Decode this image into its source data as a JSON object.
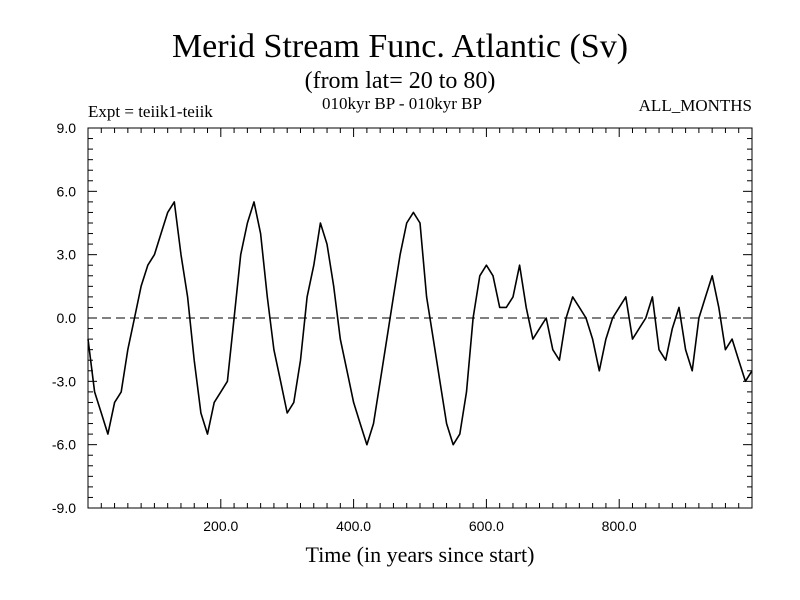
{
  "chart_data": {
    "type": "line",
    "title": "Merid Stream Func. Atlantic (Sv)",
    "subtitle": "(from lat= 20 to 80)",
    "annotations": {
      "left": "Expt = teiik1-teiik",
      "center": "010kyr BP - 010kyr BP",
      "right": "ALL_MONTHS"
    },
    "xlabel": "Time (in years since start)",
    "ylabel": "",
    "xlim": [
      0,
      1000
    ],
    "ylim": [
      -9.0,
      9.0
    ],
    "x_ticks": [
      200.0,
      400.0,
      600.0,
      800.0
    ],
    "x_tick_labels": [
      "200.0",
      "400.0",
      "600.0",
      "800.0"
    ],
    "y_ticks": [
      9.0,
      6.0,
      3.0,
      0.0,
      -3.0,
      -6.0,
      -9.0
    ],
    "y_tick_labels": [
      "9.0",
      "6.0",
      "3.0",
      "0.0",
      "-3.0",
      "-6.0",
      "-9.0"
    ],
    "reference_line": {
      "y": 0.0,
      "style": "dashed"
    },
    "grid": false,
    "legend": "none",
    "colors": {
      "line": "#000000",
      "axis": "#000000",
      "background": "#ffffff"
    },
    "series": [
      {
        "x": [
          0,
          10,
          20,
          30,
          40,
          50,
          60,
          70,
          80,
          90,
          100,
          110,
          120,
          130,
          140,
          150,
          160,
          170,
          180,
          190,
          200,
          210,
          220,
          230,
          240,
          250,
          260,
          270,
          280,
          290,
          300,
          310,
          320,
          330,
          340,
          350,
          360,
          370,
          380,
          390,
          400,
          410,
          420,
          430,
          440,
          450,
          460,
          470,
          480,
          490,
          500,
          510,
          520,
          530,
          540,
          550,
          560,
          570,
          580,
          590,
          600,
          610,
          620,
          630,
          640,
          650,
          660,
          670,
          680,
          690,
          700,
          710,
          720,
          730,
          740,
          750,
          760,
          770,
          780,
          790,
          800,
          810,
          820,
          830,
          840,
          850,
          860,
          870,
          880,
          890,
          900,
          910,
          920,
          930,
          940,
          950,
          960,
          970,
          980,
          990,
          1000
        ],
        "values": [
          -1.0,
          -3.5,
          -4.5,
          -5.5,
          -4.0,
          -3.5,
          -1.5,
          0.0,
          1.5,
          2.5,
          3.0,
          4.0,
          5.0,
          5.5,
          3.0,
          1.0,
          -2.0,
          -4.5,
          -5.5,
          -4.0,
          -3.5,
          -3.0,
          0.0,
          3.0,
          4.5,
          5.5,
          4.0,
          1.0,
          -1.5,
          -3.0,
          -4.5,
          -4.0,
          -2.0,
          1.0,
          2.5,
          4.5,
          3.5,
          1.5,
          -1.0,
          -2.5,
          -4.0,
          -5.0,
          -6.0,
          -5.0,
          -3.0,
          -1.0,
          1.0,
          3.0,
          4.5,
          5.0,
          4.5,
          1.0,
          -1.0,
          -3.0,
          -5.0,
          -6.0,
          -5.5,
          -3.5,
          0.0,
          2.0,
          2.5,
          2.0,
          0.5,
          0.5,
          1.0,
          2.5,
          0.5,
          -1.0,
          -0.5,
          0.0,
          -1.5,
          -2.0,
          0.0,
          1.0,
          0.5,
          0.0,
          -1.0,
          -2.5,
          -1.0,
          0.0,
          0.5,
          1.0,
          -1.0,
          -0.5,
          0.0,
          1.0,
          -1.5,
          -2.0,
          -0.5,
          0.5,
          -1.5,
          -2.5,
          0.0,
          1.0,
          2.0,
          0.5,
          -1.5,
          -1.0,
          -2.0,
          -3.0,
          -2.5
        ]
      }
    ]
  }
}
